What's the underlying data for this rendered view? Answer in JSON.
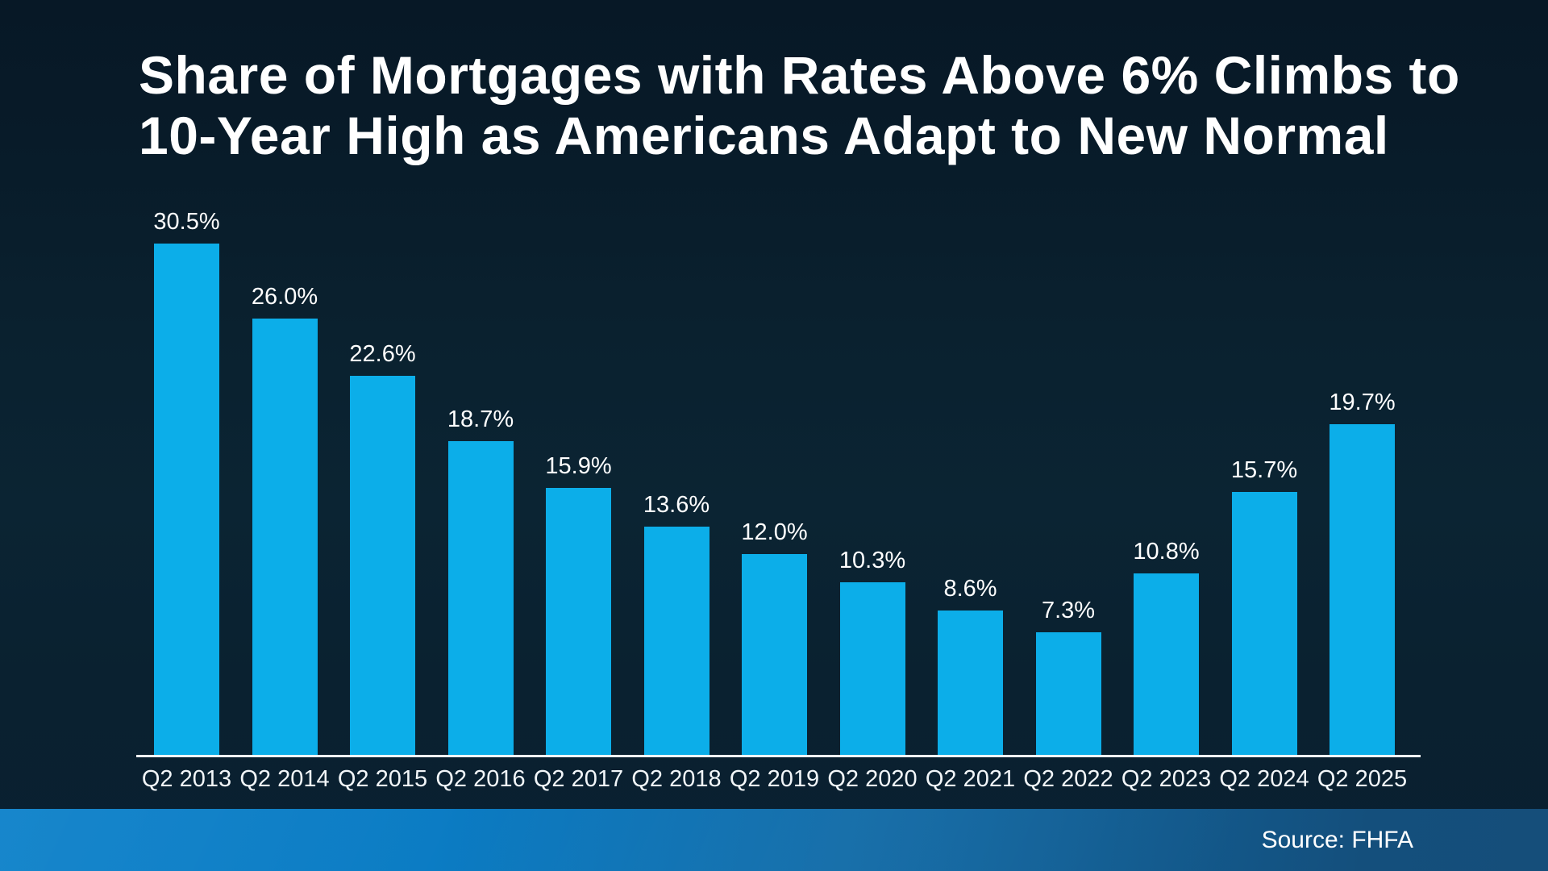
{
  "title": {
    "line1": "Share of Mortgages with Rates Above 6% Climbs to",
    "line2": "10-Year High as Americans Adapt to New Normal"
  },
  "source": {
    "label": "Source: FHFA"
  },
  "colors": {
    "bar": "#0caee9",
    "axis": "#f4f7f9",
    "background": "#0a2130",
    "strip_left": "#0b80c9",
    "strip_right": "#154e7a",
    "text": "#ffffff"
  },
  "chart_data": {
    "type": "bar",
    "title": "Share of Mortgages with Rates Above 6% Climbs to 10-Year High as Americans Adapt to New Normal",
    "categories": [
      "Q2 2013",
      "Q2 2014",
      "Q2 2015",
      "Q2 2016",
      "Q2 2017",
      "Q2 2018",
      "Q2 2019",
      "Q2 2020",
      "Q2 2021",
      "Q2 2022",
      "Q2 2023",
      "Q2 2024",
      "Q2 2025"
    ],
    "values": [
      30.5,
      26.0,
      22.6,
      18.7,
      15.9,
      13.6,
      12.0,
      10.3,
      8.6,
      7.3,
      10.8,
      15.7,
      19.7
    ],
    "value_labels": [
      "30.5%",
      "26.0%",
      "22.6%",
      "18.7%",
      "15.9%",
      "13.6%",
      "12.0%",
      "10.3%",
      "8.6%",
      "7.3%",
      "10.8%",
      "15.7%",
      "19.7%"
    ],
    "xlabel": "",
    "ylabel": "",
    "unit": "%",
    "ylim": [
      0,
      32
    ],
    "grid": false,
    "legend": "none",
    "data_labels": "above-bars"
  }
}
